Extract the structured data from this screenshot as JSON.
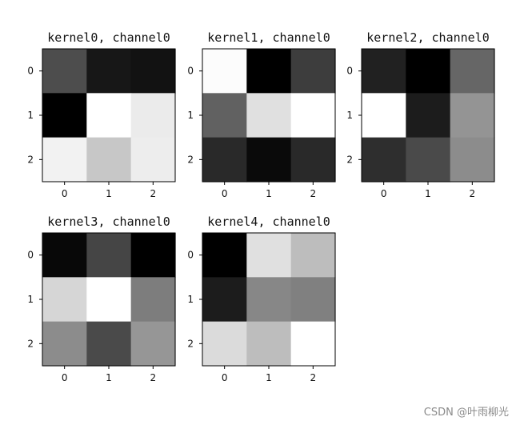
{
  "chart_data": [
    {
      "type": "heatmap",
      "title": "kernel0, channel0",
      "colormap": "gray",
      "x_ticks": [
        "0",
        "1",
        "2"
      ],
      "y_ticks": [
        "0",
        "1",
        "2"
      ],
      "values": [
        [
          0.3,
          0.09,
          0.07
        ],
        [
          0.0,
          1.0,
          0.92
        ],
        [
          0.95,
          0.78,
          0.93
        ]
      ]
    },
    {
      "type": "heatmap",
      "title": "kernel1, channel0",
      "colormap": "gray",
      "x_ticks": [
        "0",
        "1",
        "2"
      ],
      "y_ticks": [
        "0",
        "1",
        "2"
      ],
      "values": [
        [
          0.99,
          0.0,
          0.24
        ],
        [
          0.38,
          0.88,
          1.0
        ],
        [
          0.16,
          0.04,
          0.16
        ]
      ]
    },
    {
      "type": "heatmap",
      "title": "kernel2, channel0",
      "colormap": "gray",
      "x_ticks": [
        "0",
        "1",
        "2"
      ],
      "y_ticks": [
        "0",
        "1",
        "2"
      ],
      "values": [
        [
          0.13,
          0.0,
          0.4
        ],
        [
          1.0,
          0.11,
          0.58
        ],
        [
          0.18,
          0.29,
          0.55
        ]
      ]
    },
    {
      "type": "heatmap",
      "title": "kernel3, channel0",
      "colormap": "gray",
      "x_ticks": [
        "0",
        "1",
        "2"
      ],
      "y_ticks": [
        "0",
        "1",
        "2"
      ],
      "values": [
        [
          0.03,
          0.27,
          0.0
        ],
        [
          0.84,
          1.0,
          0.49
        ],
        [
          0.55,
          0.29,
          0.59
        ]
      ]
    },
    {
      "type": "heatmap",
      "title": "kernel4, channel0",
      "colormap": "gray",
      "x_ticks": [
        "0",
        "1",
        "2"
      ],
      "y_ticks": [
        "0",
        "1",
        "2"
      ],
      "values": [
        [
          0.0,
          0.88,
          0.74
        ],
        [
          0.11,
          0.53,
          0.5
        ],
        [
          0.86,
          0.74,
          1.0
        ]
      ]
    }
  ],
  "watermark": "CSDN @叶雨柳光"
}
